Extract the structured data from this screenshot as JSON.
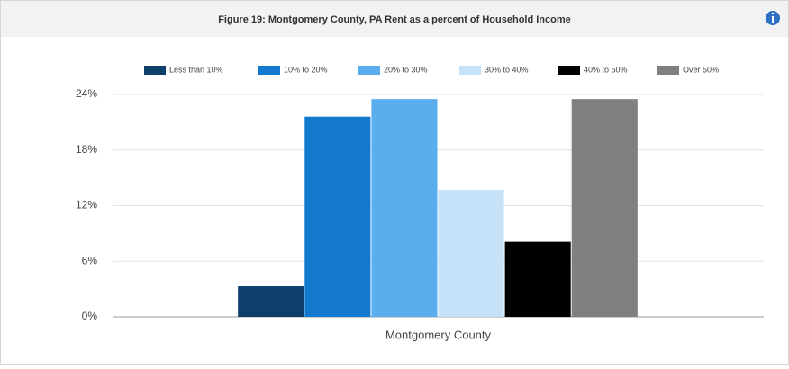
{
  "chart_data": {
    "type": "bar",
    "title": "Figure 19: Montgomery County, PA Rent as a percent of Household Income",
    "categories": [
      "Montgomery County"
    ],
    "series": [
      {
        "name": "Less than 10%",
        "color": "#0e3f6b",
        "values": [
          3.3
        ]
      },
      {
        "name": "10% to 20%",
        "color": "#1279cf",
        "values": [
          21.6
        ]
      },
      {
        "name": "20% to 30%",
        "color": "#5aaeee",
        "values": [
          23.5
        ]
      },
      {
        "name": "30% to 40%",
        "color": "#c6e2f8",
        "values": [
          13.7
        ]
      },
      {
        "name": "40% to 50%",
        "color": "#000000",
        "values": [
          8.1
        ]
      },
      {
        "name": "Over 50%",
        "color": "#808080",
        "values": [
          23.5
        ]
      }
    ],
    "ylim": [
      0,
      24
    ],
    "yticks": [
      {
        "value": 0,
        "label": "0%"
      },
      {
        "value": 6,
        "label": "6%"
      },
      {
        "value": 12,
        "label": "12%"
      },
      {
        "value": 18,
        "label": "18%"
      },
      {
        "value": 24,
        "label": "24%"
      }
    ],
    "grid": true,
    "legend": "top"
  }
}
